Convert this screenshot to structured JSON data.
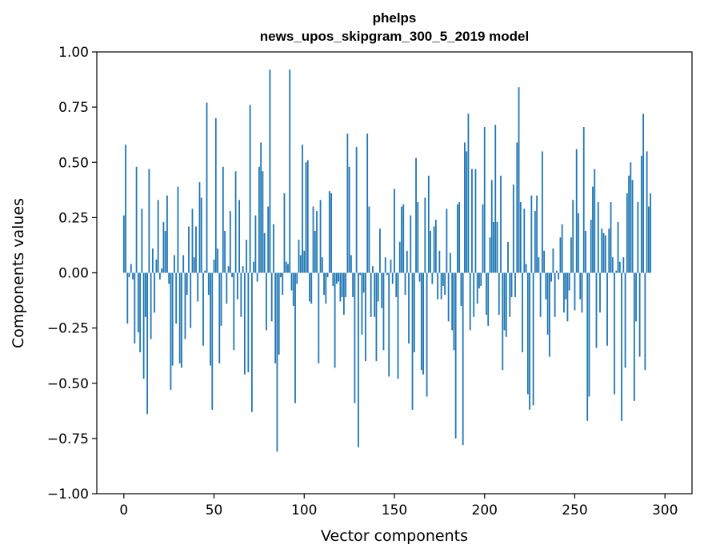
{
  "chart_data": {
    "type": "bar",
    "title": [
      "phelps",
      "news_upos_skipgram_300_5_2019 model"
    ],
    "xlabel": "Vector components",
    "ylabel": "Components values",
    "xlim": [
      -15,
      315
    ],
    "ylim": [
      -1.0,
      1.0
    ],
    "xticks": [
      0,
      50,
      100,
      150,
      200,
      250,
      300
    ],
    "xtick_labels": [
      "0",
      "50",
      "100",
      "150",
      "200",
      "250",
      "300"
    ],
    "yticks": [
      1.0,
      0.75,
      0.5,
      0.25,
      0.0,
      -0.25,
      -0.5,
      -0.75,
      -1.0
    ],
    "ytick_labels": [
      "1.00",
      "0.75",
      "0.50",
      "0.25",
      "0.00",
      "−0.25",
      "−0.50",
      "−0.75",
      "−1.00"
    ],
    "grid": false,
    "bar_color": "#1f77b4",
    "x": "0..299",
    "values": [
      0.26,
      0.58,
      -0.23,
      -0.02,
      0.04,
      -0.03,
      -0.32,
      0.48,
      -0.27,
      -0.36,
      0.29,
      -0.48,
      -0.2,
      -0.64,
      0.47,
      -0.3,
      0.11,
      -0.18,
      0.06,
      0.33,
      -0.03,
      0.02,
      0.23,
      0.19,
      0.35,
      -0.05,
      -0.53,
      -0.42,
      0.08,
      -0.23,
      0.39,
      -0.41,
      -0.43,
      0.08,
      -0.3,
      -0.1,
      0.21,
      -0.25,
      0.29,
      0.07,
      0.21,
      -0.13,
      0.41,
      0.34,
      -0.33,
      0.01,
      0.77,
      -0.1,
      -0.42,
      -0.62,
      0.06,
      0.7,
      0.11,
      -0.41,
      -0.24,
      0.48,
      0.19,
      -0.14,
      0.03,
      0.28,
      -0.02,
      -0.35,
      0.46,
      -0.12,
      0.33,
      -0.2,
      0.03,
      -0.46,
      0.15,
      -0.45,
      0.76,
      -0.63,
      0.05,
      0.26,
      -0.04,
      0.48,
      0.59,
      0.46,
      0.18,
      -0.26,
      0.3,
      0.92,
      -0.22,
      0.22,
      -0.41,
      -0.81,
      -0.37,
      -0.02,
      -0.1,
      0.36,
      0.05,
      0.04,
      0.92,
      -0.08,
      -0.15,
      -0.59,
      -0.05,
      0.15,
      0.08,
      0.58,
      0.1,
      0.5,
      0.51,
      -0.13,
      -0.14,
      0.3,
      0.19,
      0.28,
      -0.41,
      0.33,
      0.07,
      -0.1,
      -0.14,
      -0.02,
      0.37,
      0.36,
      -0.06,
      -0.43,
      -0.05,
      -0.04,
      -0.13,
      -0.11,
      -0.19,
      -0.11,
      0.63,
      0.48,
      0.08,
      -0.11,
      -0.59,
      0.57,
      -0.79,
      -0.01,
      -0.28,
      -0.09,
      -0.4,
      0.63,
      0.3,
      -0.2,
      0.03,
      -0.2,
      -0.4,
      -0.13,
      0.2,
      -0.16,
      -0.35,
      0.07,
      -0.01,
      -0.47,
      0.06,
      -0.05,
      0.38,
      -0.11,
      -0.48,
      0.14,
      0.3,
      0.31,
      -0.1,
      0.1,
      -0.32,
      0.26,
      -0.62,
      -0.36,
      0.52,
      0.32,
      -0.04,
      -0.44,
      -0.46,
      0.34,
      -0.56,
      0.44,
      0.19,
      -0.05,
      0.21,
      0.24,
      -0.12,
      0.1,
      -0.12,
      -0.06,
      -0.1,
      0.29,
      -0.22,
      0.09,
      -0.26,
      -0.35,
      -0.75,
      0.31,
      0.32,
      -0.15,
      -0.78,
      0.59,
      0.55,
      0.72,
      -0.26,
      0.47,
      -0.2,
      0.47,
      -0.14,
      -0.07,
      -0.06,
      0.31,
      0.66,
      -0.19,
      -0.24,
      0.16,
      0.42,
      0.23,
      0.67,
      0.23,
      -0.19,
      0.44,
      -0.44,
      -0.26,
      -0.29,
      0.14,
      -0.2,
      -0.11,
      0.4,
      -0.11,
      0.59,
      0.84,
      0.32,
      -0.36,
      0.29,
      0.04,
      -0.55,
      -0.62,
      0.35,
      -0.6,
      0.28,
      0.35,
      0.07,
      -0.2,
      0.55,
      0.1,
      -0.12,
      -0.28,
      -0.38,
      -0.04,
      0.11,
      -0.2,
      0.01,
      -0.03,
      0.16,
      0.22,
      -0.18,
      -0.12,
      -0.22,
      -0.08,
      0.16,
      0.33,
      -0.17,
      0.56,
      0.27,
      -0.12,
      -0.18,
      0.66,
      0.19,
      -0.67,
      -0.56,
      0.24,
      0.39,
      0.47,
      -0.34,
      0.32,
      -0.18,
      0.2,
      0.18,
      0.17,
      -0.33,
      0.2,
      0.32,
      0.07,
      -0.55,
      0.01,
      0.23,
      0.05,
      -0.67,
      0.07,
      -0.43,
      0.36,
      0.44,
      0.5,
      0.42,
      -0.58,
      -0.22,
      0.32,
      -0.38,
      0.53,
      0.72,
      -0.44,
      0.55,
      0.3,
      0.36
    ]
  }
}
